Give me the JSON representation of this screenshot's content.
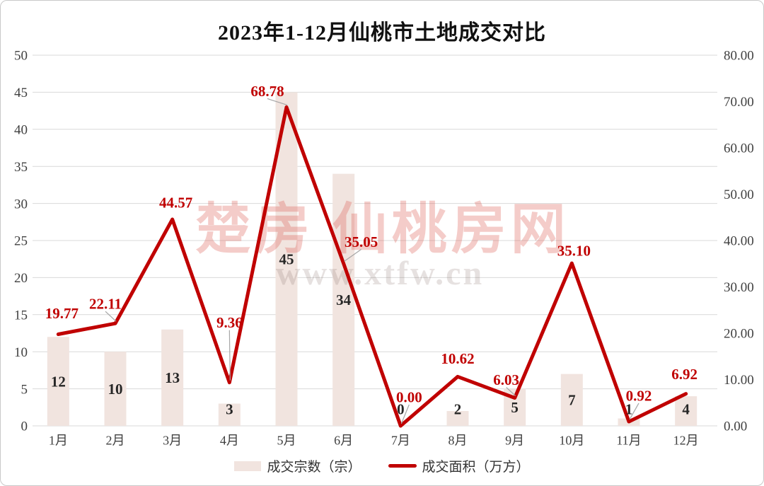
{
  "title": "2023年1-12月仙桃市土地成交对比",
  "chart_data": {
    "type": "bar",
    "combo": "bar+line dual-axis",
    "title": "2023年1-12月仙桃市土地成交对比",
    "categories": [
      "1月",
      "2月",
      "3月",
      "4月",
      "5月",
      "6月",
      "7月",
      "8月",
      "9月",
      "10月",
      "11月",
      "12月"
    ],
    "series": [
      {
        "name": "成交宗数（宗）",
        "type": "bar",
        "axis": "left",
        "values": [
          12,
          10,
          13,
          3,
          45,
          34,
          0,
          2,
          5,
          7,
          1,
          4
        ],
        "labels": [
          "12",
          "10",
          "13",
          "3",
          "45",
          "34",
          "0",
          "2",
          "5",
          "7",
          "1",
          "4"
        ]
      },
      {
        "name": "成交面积（万方）",
        "type": "line",
        "axis": "right",
        "values": [
          19.77,
          22.11,
          44.57,
          9.36,
          68.78,
          35.05,
          0.0,
          10.62,
          6.03,
          35.1,
          0.92,
          6.92
        ],
        "labels": [
          "19.77",
          "22.11",
          "44.57",
          "9.36",
          "68.78",
          "35.05",
          "0.00",
          "10.62",
          "6.03",
          "35.10",
          "0.92",
          "6.92"
        ]
      }
    ],
    "left_axis": {
      "min": 0,
      "max": 50,
      "step": 5,
      "ticks": [
        "0",
        "5",
        "10",
        "15",
        "20",
        "25",
        "30",
        "35",
        "40",
        "45",
        "50"
      ]
    },
    "right_axis": {
      "min": 0,
      "max": 80,
      "step": 10,
      "ticks": [
        "0.00",
        "10.00",
        "20.00",
        "30.00",
        "40.00",
        "50.00",
        "60.00",
        "70.00",
        "80.00"
      ]
    },
    "grid": true,
    "legend_position": "bottom"
  },
  "legend": {
    "bar_label": "成交宗数（宗）",
    "line_label": "成交面积（万方）"
  },
  "watermark": {
    "line1": "楚房 仙桃房网",
    "line2": "www.xtfw.cn"
  },
  "colors": {
    "bar_fill": "#f1e4df",
    "line": "#c00000",
    "line_label": "#c00000",
    "bar_label": "#262626",
    "grid": "#d9d9d9",
    "axis_text": "#404040",
    "leader": "#a6a6a6",
    "watermark_cn": "rgba(222,96,86,0.32)",
    "watermark_url": "rgba(130,104,99,0.20)",
    "frame_border": "#c9c9c9"
  }
}
